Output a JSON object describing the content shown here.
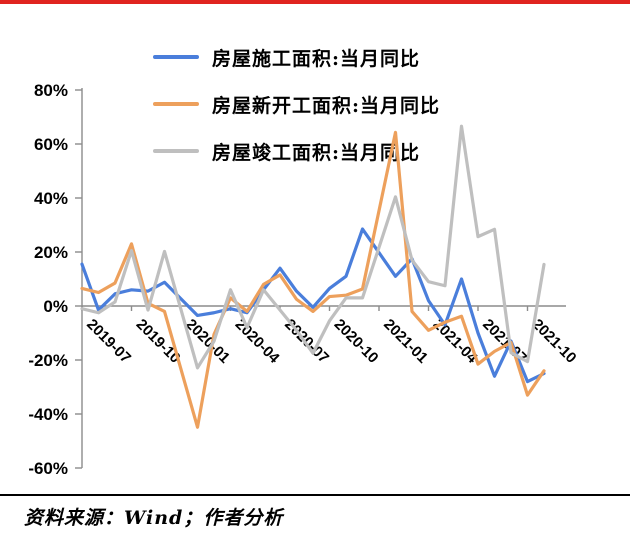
{
  "page": {
    "top_border_color": "#e02420",
    "divider_color": "#000000",
    "background": "#ffffff"
  },
  "source": {
    "text": "资料来源：Wind；作者分析"
  },
  "chart_data": {
    "type": "line",
    "title": "",
    "xlabel": "",
    "ylabel": "",
    "grid": false,
    "legend_position": "top-left",
    "axis_color": "#8c8c8c",
    "label_color": "#000000",
    "ylim": [
      -60,
      80
    ],
    "y_tick_step": 20,
    "y_tick_labels": [
      "80%",
      "60%",
      "40%",
      "20%",
      "0%",
      "-20%",
      "-40%",
      "-60%"
    ],
    "x_tick_labels": [
      "2019-07",
      "2019-10",
      "2020-01",
      "2020-04",
      "2020-07",
      "2020-10",
      "2021-01",
      "2021-04",
      "2021-07",
      "2021-10"
    ],
    "x_tick_indices": [
      0,
      3,
      6,
      9,
      12,
      15,
      18,
      21,
      24,
      27
    ],
    "categories": [
      "2019-07",
      "2019-08",
      "2019-09",
      "2019-10",
      "2019-11",
      "2019-12",
      "2020-01",
      "2020-02",
      "2020-03",
      "2020-04",
      "2020-05",
      "2020-06",
      "2020-07",
      "2020-08",
      "2020-09",
      "2020-10",
      "2020-11",
      "2020-12",
      "2021-01",
      "2021-02",
      "2021-03",
      "2021-04",
      "2021-05",
      "2021-06",
      "2021-07",
      "2021-08",
      "2021-09",
      "2021-10",
      "2021-11"
    ],
    "series": [
      {
        "name": "房屋施工面积:当月同比",
        "color": "#4a7edb",
        "values": [
          15.5,
          -1.5,
          4.5,
          6.0,
          5.5,
          8.8,
          null,
          -3.5,
          -2.5,
          -1.0,
          -2.5,
          6.0,
          14.0,
          5.5,
          -0.5,
          6.5,
          11.0,
          28.5,
          null,
          11.0,
          17.5,
          2.0,
          -7.0,
          10.0,
          -10.0,
          -26.0,
          -13.0,
          -28.0,
          -25.0
        ]
      },
      {
        "name": "房屋新开工面积:当月同比",
        "color": "#eda05c",
        "values": [
          6.5,
          5.0,
          8.5,
          23.0,
          1.0,
          -2.0,
          null,
          -44.9,
          -10.5,
          3.0,
          -2.0,
          8.0,
          11.5,
          2.5,
          -2.0,
          3.5,
          4.0,
          6.3,
          null,
          64.3,
          -2.0,
          -9.0,
          -6.0,
          -3.8,
          -21.5,
          -16.8,
          -13.5,
          -33.0,
          -24.0
        ]
      },
      {
        "name": "房屋竣工面积:当月同比",
        "color": "#bfbfbf",
        "values": [
          -1.0,
          -2.5,
          1.5,
          20.5,
          -1.5,
          20.2,
          null,
          -22.9,
          -13.0,
          6.0,
          -8.0,
          6.0,
          -1.5,
          -9.0,
          -17.5,
          -5.5,
          3.0,
          3.0,
          null,
          40.4,
          17.0,
          9.0,
          7.5,
          66.6,
          25.7,
          28.4,
          -17.3,
          -20.6,
          15.4
        ]
      }
    ]
  }
}
